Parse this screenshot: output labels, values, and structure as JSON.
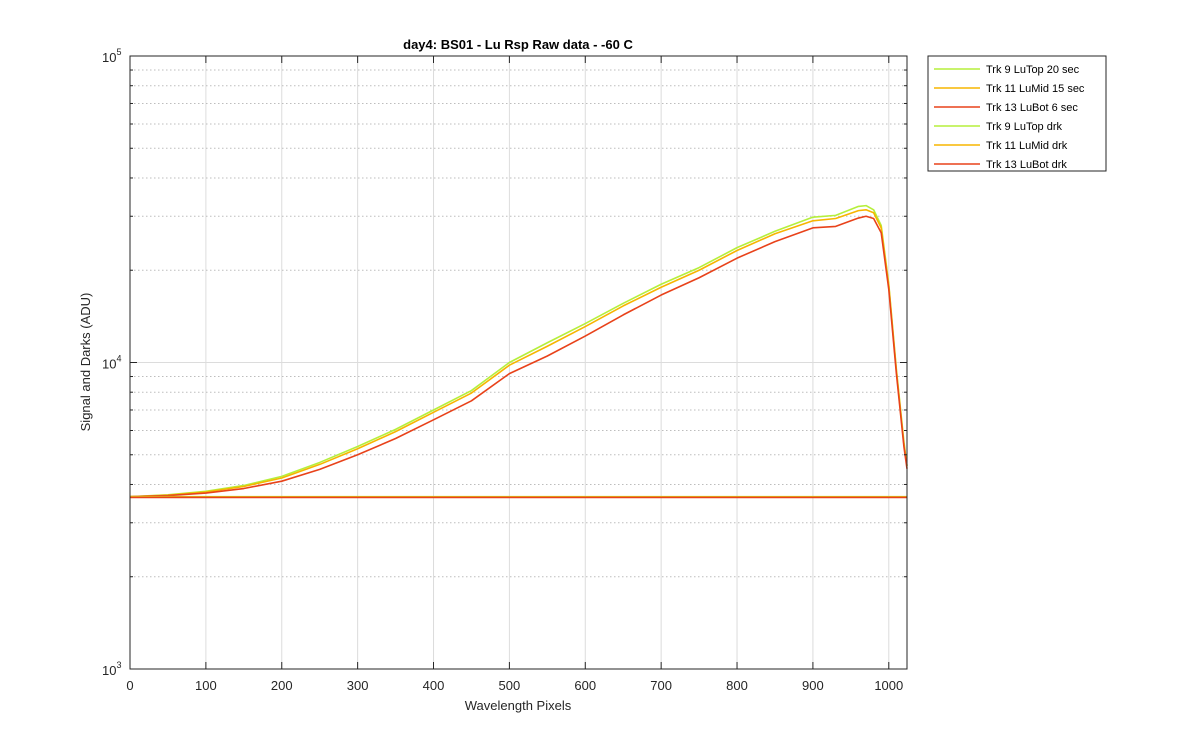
{
  "chart_data": {
    "type": "line",
    "title": "day4: BS01 - Lu Rsp Raw data - -60 C",
    "xlabel": "Wavelength Pixels",
    "ylabel": "Signal and Darks (ADU)",
    "xlim": [
      0,
      1024
    ],
    "ylim": [
      1000,
      100000
    ],
    "yscale": "log",
    "grid": true,
    "legend_position": "outside-right-top",
    "xticks": [
      0,
      100,
      200,
      300,
      400,
      500,
      600,
      700,
      800,
      900,
      1000
    ],
    "yticks": [
      {
        "base": "10",
        "exp": "3",
        "value": 1000
      },
      {
        "base": "10",
        "exp": "4",
        "value": 10000
      },
      {
        "base": "10",
        "exp": "5",
        "value": 100000
      }
    ],
    "series": [
      {
        "name": "Trk 9 LuTop 20 sec",
        "color": "#b5ef3b",
        "x": [
          0,
          50,
          100,
          150,
          200,
          250,
          300,
          350,
          400,
          450,
          500,
          550,
          600,
          650,
          700,
          750,
          800,
          850,
          900,
          930,
          960,
          970,
          980,
          990,
          1000,
          1010,
          1020,
          1024
        ],
        "y": [
          3650,
          3700,
          3800,
          3970,
          4250,
          4720,
          5320,
          6050,
          7000,
          8100,
          10000,
          11600,
          13400,
          15600,
          18000,
          20400,
          23700,
          26800,
          29800,
          30200,
          32300,
          32500,
          31500,
          28000,
          18000,
          9500,
          5500,
          4600
        ]
      },
      {
        "name": "Trk 11 LuMid 15 sec",
        "color": "#f7b500",
        "x": [
          0,
          50,
          100,
          150,
          200,
          250,
          300,
          350,
          400,
          450,
          500,
          550,
          600,
          650,
          700,
          750,
          800,
          850,
          900,
          930,
          960,
          970,
          980,
          990,
          1000,
          1010,
          1020,
          1024
        ],
        "y": [
          3650,
          3690,
          3780,
          3940,
          4200,
          4650,
          5230,
          5950,
          6880,
          7950,
          9800,
          11300,
          13100,
          15300,
          17600,
          20000,
          23200,
          26300,
          29000,
          29500,
          31300,
          31500,
          30800,
          27500,
          17800,
          9400,
          5400,
          4600
        ]
      },
      {
        "name": "Trk 13 LuBot 6 sec",
        "color": "#e8421a",
        "x": [
          0,
          50,
          100,
          150,
          200,
          250,
          300,
          350,
          400,
          450,
          500,
          550,
          600,
          650,
          700,
          750,
          800,
          850,
          900,
          930,
          960,
          970,
          980,
          990,
          1000,
          1010,
          1020,
          1024
        ],
        "y": [
          3650,
          3680,
          3750,
          3880,
          4100,
          4480,
          5000,
          5650,
          6500,
          7500,
          9200,
          10500,
          12200,
          14300,
          16600,
          18900,
          21900,
          24800,
          27500,
          27800,
          29600,
          30000,
          29500,
          26500,
          17300,
          9200,
          5300,
          4500
        ]
      },
      {
        "name": "Trk 9 LuTop drk",
        "color": "#b5ef3b",
        "x": [
          0,
          1024
        ],
        "y": [
          3650,
          3650
        ]
      },
      {
        "name": "Trk 11 LuMid drk",
        "color": "#f7b500",
        "x": [
          0,
          1024
        ],
        "y": [
          3640,
          3640
        ]
      },
      {
        "name": "Trk 13 LuBot drk",
        "color": "#e8421a",
        "x": [
          0,
          1024
        ],
        "y": [
          3630,
          3630
        ]
      }
    ]
  }
}
